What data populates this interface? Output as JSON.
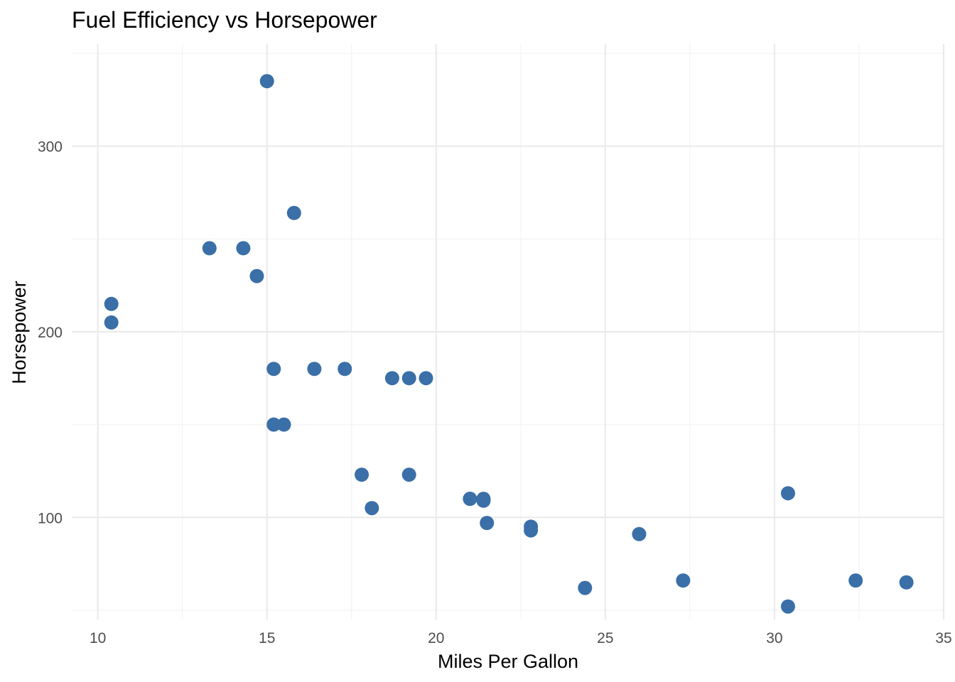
{
  "chart_data": {
    "type": "scatter",
    "title": "Fuel Efficiency vs Horsepower",
    "xlabel": "Miles Per Gallon",
    "ylabel": "Horsepower",
    "xlim": [
      9.23,
      35
    ],
    "ylim": [
      45,
      355
    ],
    "x_ticks": [
      10,
      15,
      20,
      25,
      30,
      35
    ],
    "y_ticks": [
      100,
      200,
      300
    ],
    "grid": true,
    "point_color": "#3a6fa8",
    "points": [
      {
        "x": 21.0,
        "y": 110
      },
      {
        "x": 21.0,
        "y": 110
      },
      {
        "x": 22.8,
        "y": 93
      },
      {
        "x": 21.4,
        "y": 110
      },
      {
        "x": 18.7,
        "y": 175
      },
      {
        "x": 18.1,
        "y": 105
      },
      {
        "x": 14.3,
        "y": 245
      },
      {
        "x": 24.4,
        "y": 62
      },
      {
        "x": 22.8,
        "y": 95
      },
      {
        "x": 19.2,
        "y": 123
      },
      {
        "x": 17.8,
        "y": 123
      },
      {
        "x": 16.4,
        "y": 180
      },
      {
        "x": 17.3,
        "y": 180
      },
      {
        "x": 15.2,
        "y": 180
      },
      {
        "x": 10.4,
        "y": 205
      },
      {
        "x": 10.4,
        "y": 215
      },
      {
        "x": 14.7,
        "y": 230
      },
      {
        "x": 32.4,
        "y": 66
      },
      {
        "x": 30.4,
        "y": 52
      },
      {
        "x": 33.9,
        "y": 65
      },
      {
        "x": 21.5,
        "y": 97
      },
      {
        "x": 15.5,
        "y": 150
      },
      {
        "x": 15.2,
        "y": 150
      },
      {
        "x": 13.3,
        "y": 245
      },
      {
        "x": 19.2,
        "y": 175
      },
      {
        "x": 27.3,
        "y": 66
      },
      {
        "x": 26.0,
        "y": 91
      },
      {
        "x": 30.4,
        "y": 113
      },
      {
        "x": 15.8,
        "y": 264
      },
      {
        "x": 19.7,
        "y": 175
      },
      {
        "x": 15.0,
        "y": 335
      },
      {
        "x": 21.4,
        "y": 109
      }
    ]
  }
}
